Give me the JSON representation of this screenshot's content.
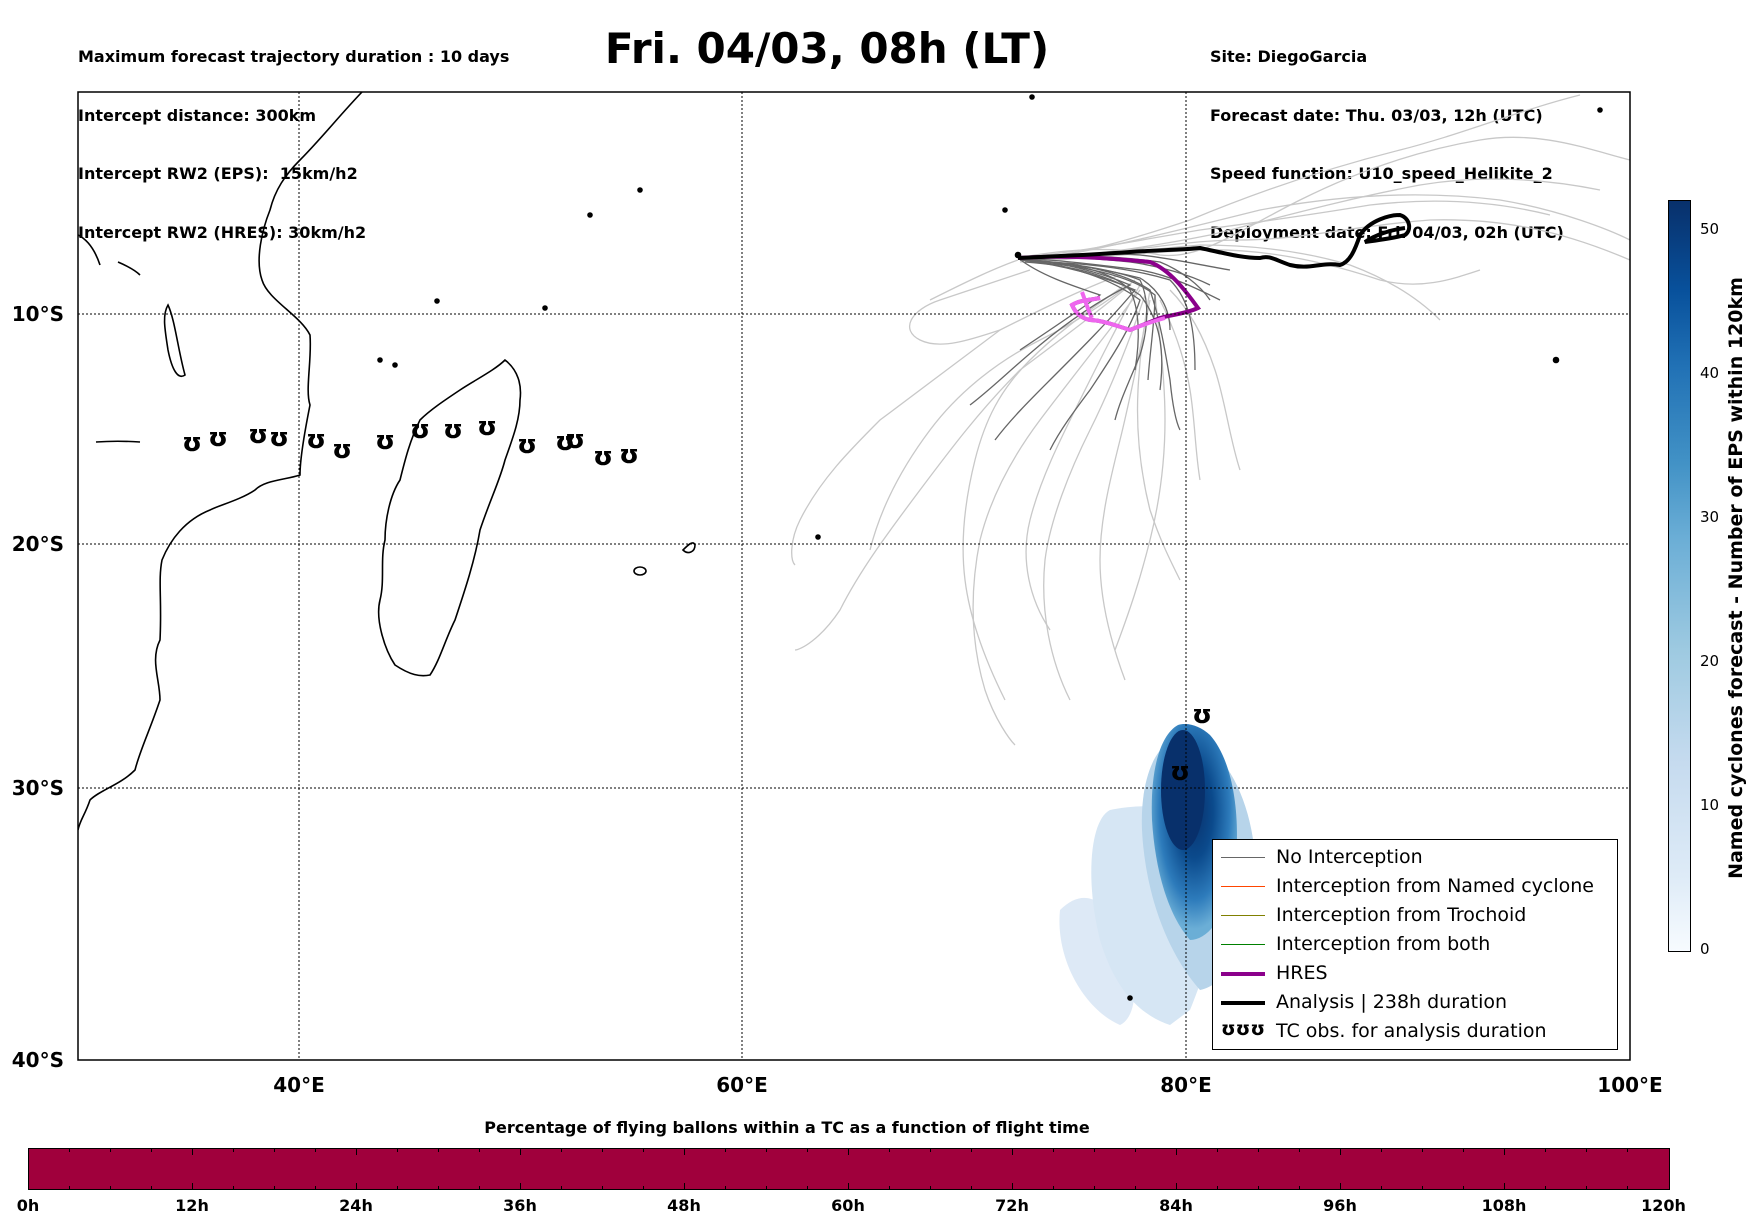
{
  "header": {
    "left_lines": [
      "Maximum forecast trajectory duration : 10 days",
      "Intercept distance: 300km",
      "Intercept RW2 (EPS):  15km/h2",
      "Intercept RW2 (HRES): 30km/h2"
    ],
    "right_lines": [
      "Site: DiegoGarcia",
      "Forecast date: Thu. 03/03, 12h (UTC)",
      "Speed function: U10_speed_Helikite_2",
      "Deployment date: Fri. 04/03, 02h (UTC)"
    ],
    "title": "Fri. 04/03, 08h (LT)"
  },
  "map": {
    "lat_labels": [
      "10°S",
      "20°S",
      "30°S",
      "40°S"
    ],
    "lon_labels": [
      "40°E",
      "60°E",
      "80°E",
      "100°E"
    ],
    "colors": {
      "no_interception": "#666666",
      "eps_faded": "#c8c8c8",
      "named_cyclone": "#ff4500",
      "trochoid": "#808000",
      "both": "#008000",
      "hres": "#8b008b",
      "hres_light": "#ee66ee",
      "analysis": "#000000",
      "density_dark": "#08306b",
      "density_light": "#deebf7"
    }
  },
  "legend": {
    "items": [
      {
        "label": "No Interception",
        "color": "#666666",
        "width": 1
      },
      {
        "label": "Interception from Named cyclone",
        "color": "#ff4500",
        "width": 1
      },
      {
        "label": "Interception from Trochoid",
        "color": "#808000",
        "width": 1
      },
      {
        "label": "Interception from both",
        "color": "#008000",
        "width": 1
      },
      {
        "label": "HRES",
        "color": "#8b008b",
        "width": 4
      },
      {
        "label": "Analysis | 238h duration",
        "color": "#000000",
        "width": 4
      }
    ],
    "tc_symbols": "ʊʊʊ",
    "tc_label": "TC obs. for analysis duration"
  },
  "colorbar_right": {
    "title": "Named cyclones forecast - Number of EPS within 120km",
    "ticks": [
      "0",
      "10",
      "20",
      "30",
      "40",
      "50"
    ]
  },
  "colorbar_bottom": {
    "title": "Percentage of flying ballons within a TC as a function of flight time",
    "ticks": [
      "0h",
      "12h",
      "24h",
      "36h",
      "48h",
      "60h",
      "72h",
      "84h",
      "96h",
      "108h",
      "120h"
    ],
    "fill_color": "#a0003c"
  }
}
